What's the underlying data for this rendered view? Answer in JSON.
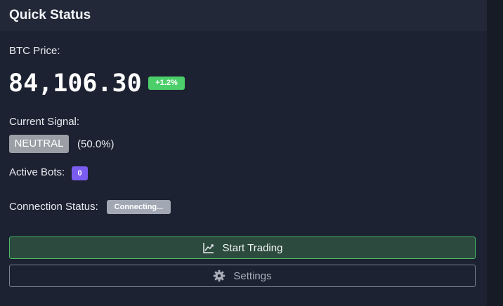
{
  "card": {
    "title": "Quick Status"
  },
  "price": {
    "label": "BTC Price:",
    "value": "84,106.30",
    "change": "+1.2%",
    "change_color": "#4ccf6a"
  },
  "signal": {
    "label": "Current Signal:",
    "value": "NEUTRAL",
    "confidence": "(50.0%)",
    "badge_color": "#9b9fa5"
  },
  "bots": {
    "label": "Active Bots:",
    "count": "0",
    "badge_color": "#7a5cf0"
  },
  "connection": {
    "label": "Connection Status:",
    "status": "Connecting...",
    "badge_color": "#a1a8b4"
  },
  "actions": {
    "start_label": "Start Trading",
    "start_icon": "chart-line-icon",
    "settings_label": "Settings",
    "settings_icon": "gear-icon"
  }
}
